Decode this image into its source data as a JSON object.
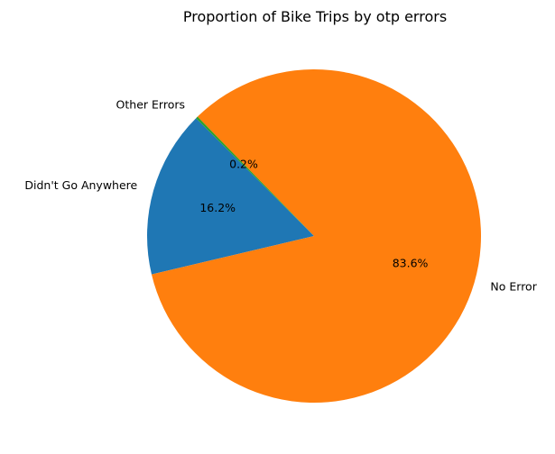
{
  "chart_data": {
    "type": "pie",
    "title": "Proportion of Bike Trips by otp errors",
    "labels": [
      "Didn't Go Anywhere",
      "No Error",
      "Other Errors"
    ],
    "values": [
      16.2,
      83.6,
      0.2
    ],
    "percent_labels": [
      "16.2%",
      "83.6%",
      "0.2%"
    ],
    "colors": [
      "#1f77b4",
      "#ff7f0e",
      "#2ca02c"
    ],
    "start_angle_deg": 135,
    "direction": "counterclockwise",
    "legend": "none"
  }
}
